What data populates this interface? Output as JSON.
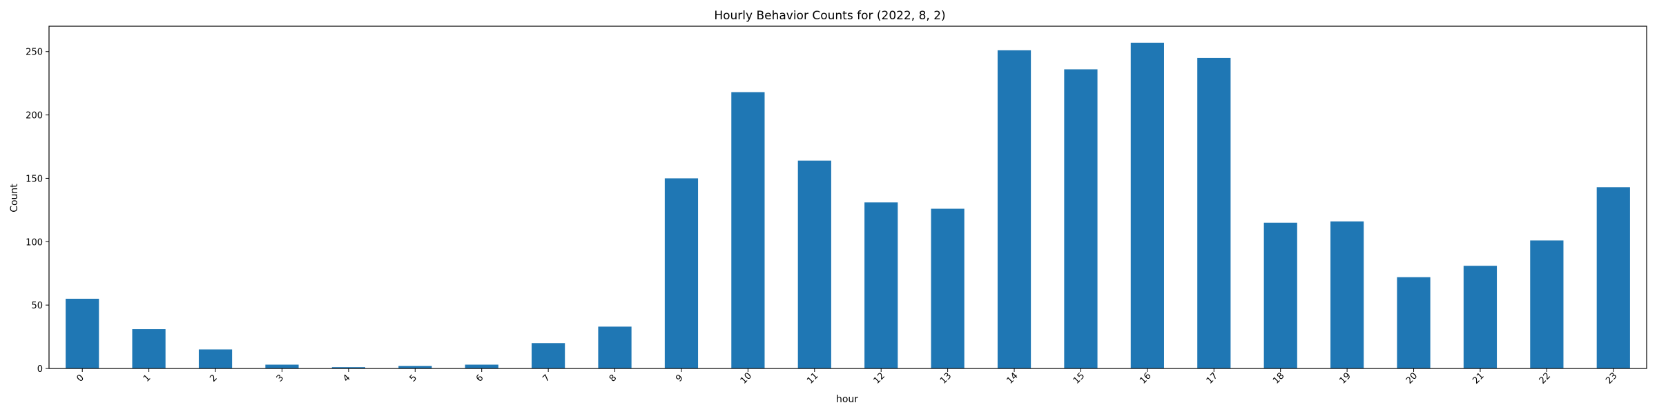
{
  "chart_data": {
    "type": "bar",
    "title": "Hourly Behavior Counts for (2022, 8, 2)",
    "xlabel": "hour",
    "ylabel": "Count",
    "categories": [
      "0",
      "1",
      "2",
      "3",
      "4",
      "5",
      "6",
      "7",
      "8",
      "9",
      "10",
      "11",
      "12",
      "13",
      "14",
      "15",
      "16",
      "17",
      "18",
      "19",
      "20",
      "21",
      "22",
      "23"
    ],
    "values": [
      55,
      31,
      15,
      3,
      1,
      2,
      3,
      20,
      33,
      150,
      218,
      164,
      131,
      126,
      251,
      236,
      257,
      245,
      115,
      116,
      72,
      81,
      101,
      143
    ],
    "ylim": [
      0,
      270
    ],
    "yticks": [
      0,
      50,
      100,
      150,
      200,
      250
    ],
    "bar_color": "#1f77b4",
    "grid": false,
    "legend": "none"
  }
}
